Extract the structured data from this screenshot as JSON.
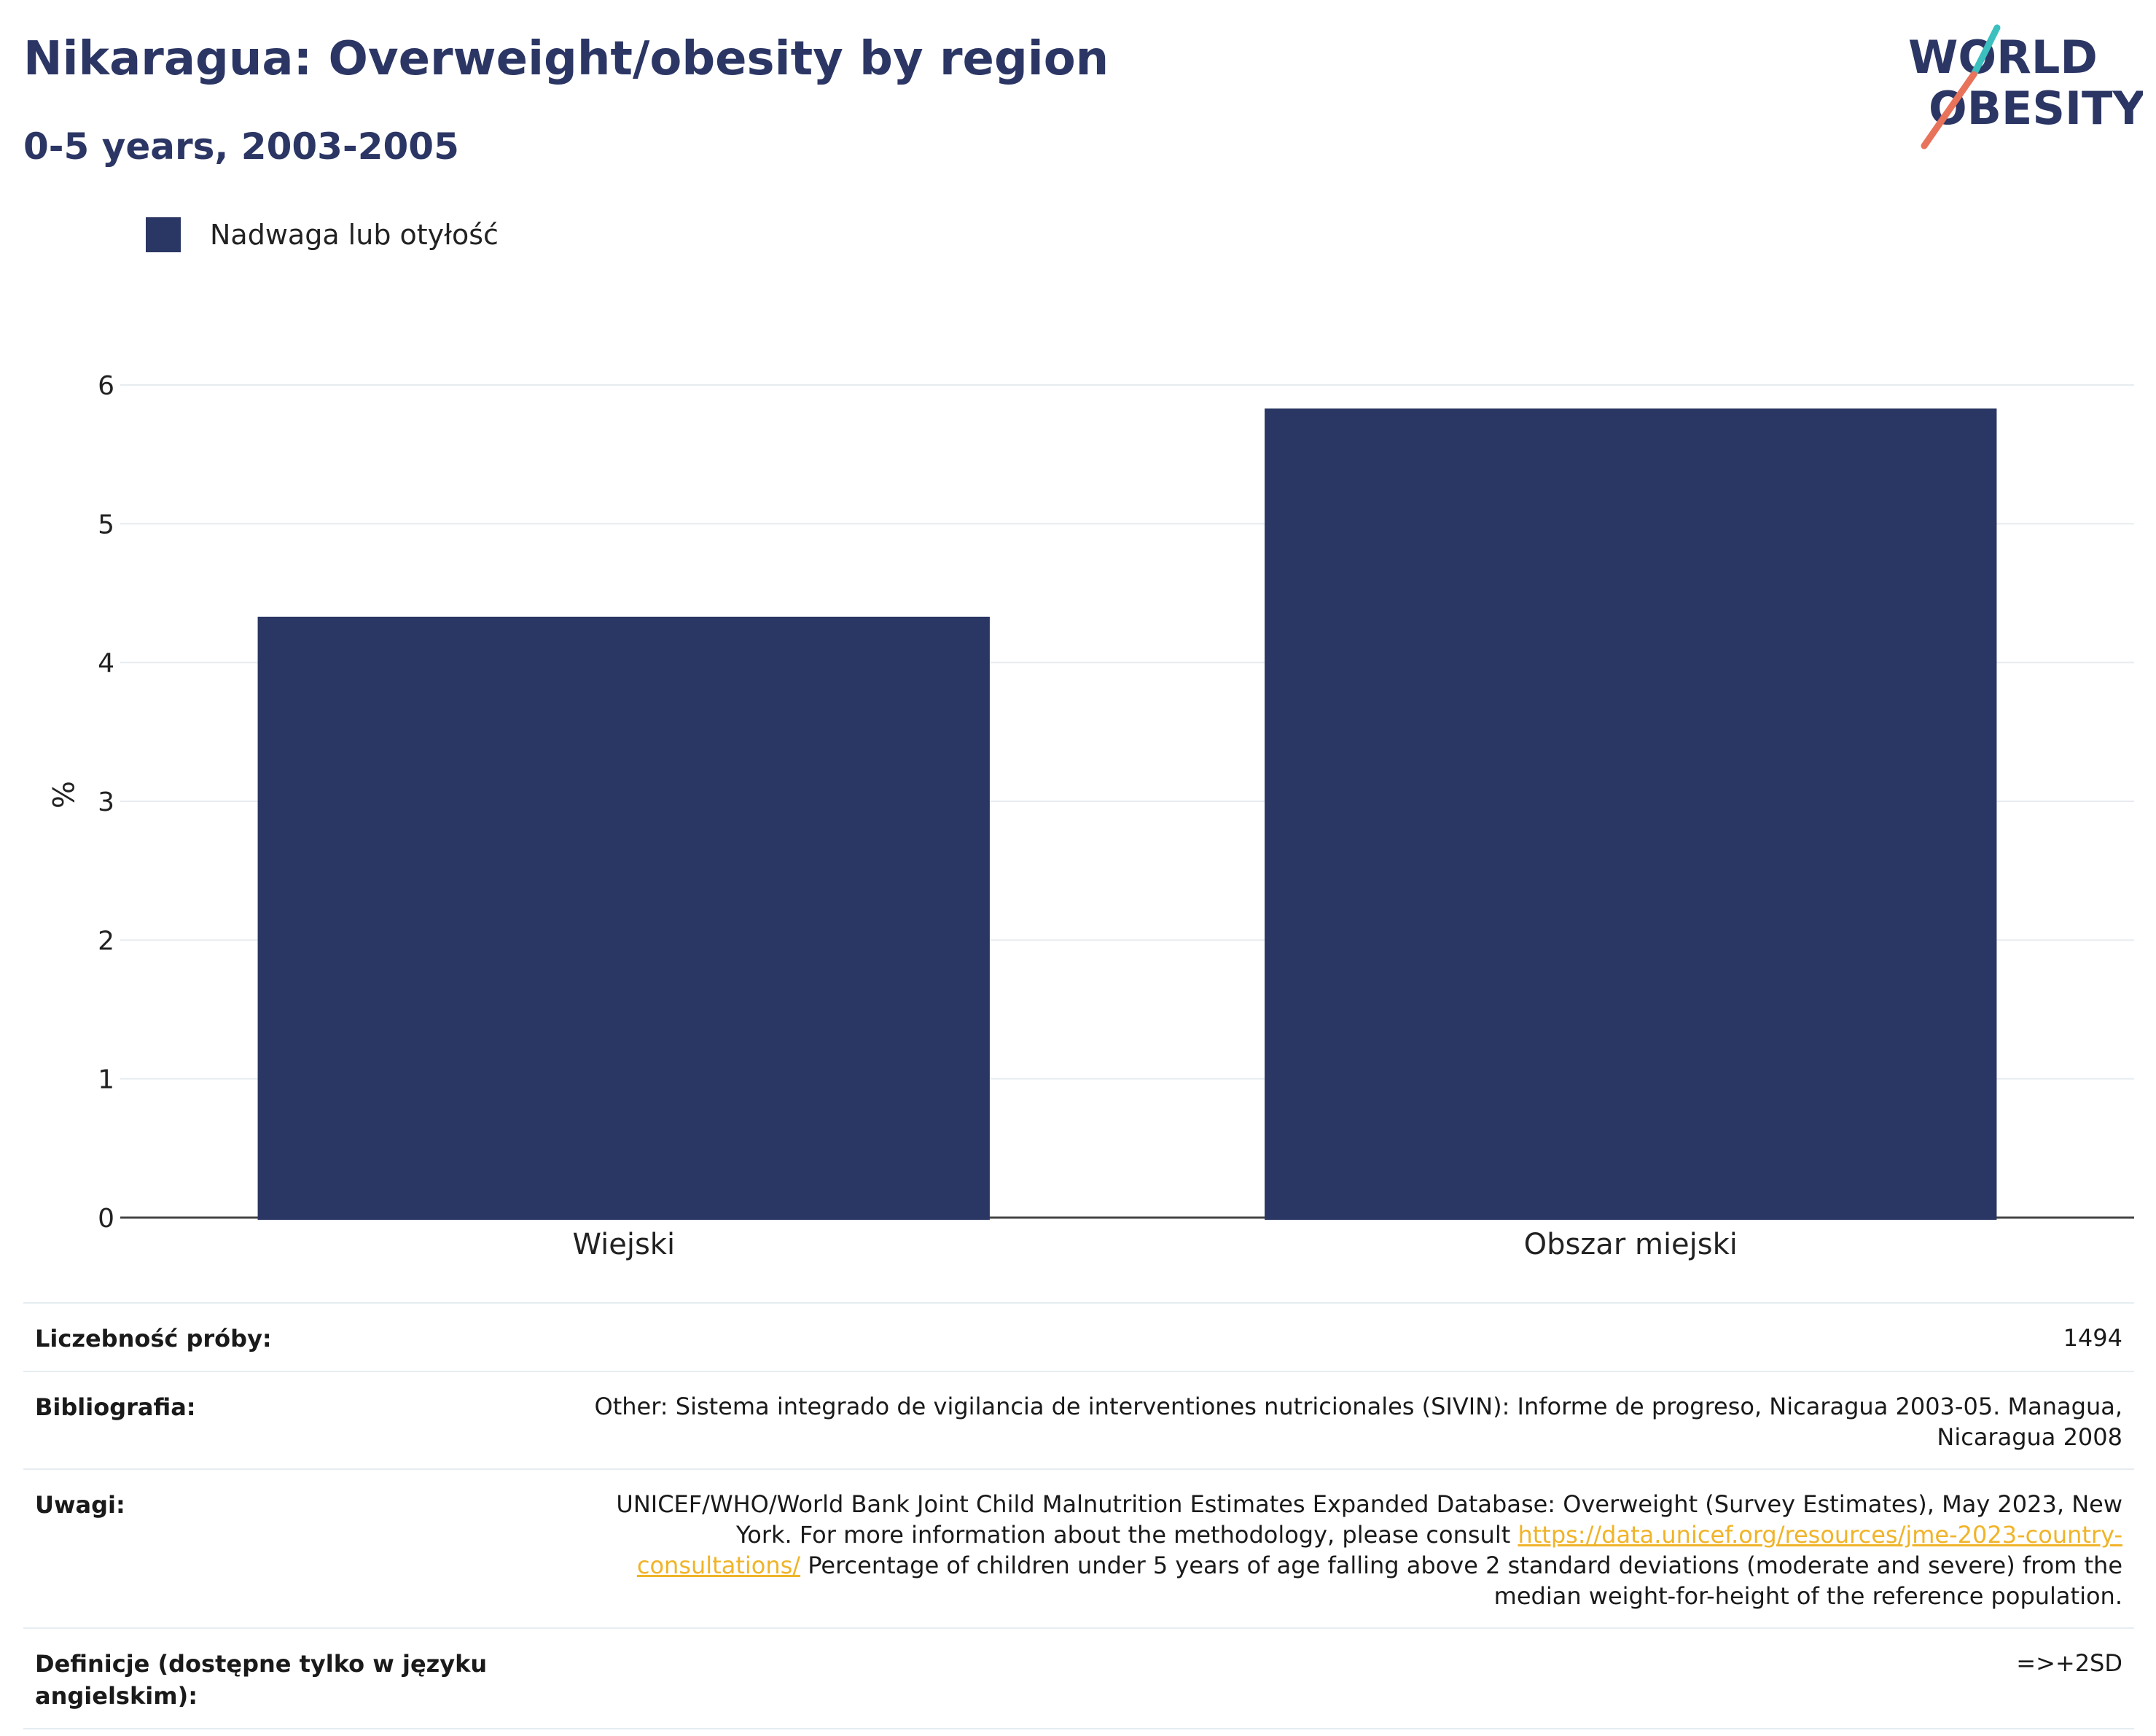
{
  "header": {
    "title": "Nikaragua: Overweight/obesity by region",
    "subtitle": "0-5 years, 2003-2005",
    "logo_line1": "WORLD",
    "logo_line2": "OBESITY"
  },
  "colors": {
    "bar": "#2a3663",
    "title": "#2b3664",
    "grid": "#e8ecef",
    "link": "#f0b429",
    "logo_teal": "#3bbfbf",
    "logo_coral": "#e8735a"
  },
  "chart_data": {
    "type": "bar",
    "categories": [
      "Wiejski",
      "Obszar miejski"
    ],
    "series": [
      {
        "name": "Nadwaga lub otyłość",
        "values": [
          4.33,
          5.83
        ]
      }
    ],
    "ylabel": "%",
    "xlabel": "",
    "ylim": [
      0,
      6
    ],
    "yticks": [
      0,
      1,
      2,
      3,
      4,
      5,
      6
    ],
    "grid": true,
    "legend_position": "top-left"
  },
  "info": {
    "sample_label": "Liczebność próby:",
    "sample_value": "1494",
    "biblio_label": "Bibliografia:",
    "biblio_value": "Other: Sistema integrado de vigilancia de interventiones nutricionales (SIVIN): Informe de progreso, Nicaragua 2003-05. Managua, Nicaragua 2008",
    "notes_label": "Uwagi:",
    "notes_text1": "UNICEF/WHO/World Bank Joint Child Malnutrition Estimates Expanded Database: Overweight (Survey Estimates), May 2023, New York. For more information about the methodology, please consult ",
    "notes_link": "https://data.unicef.org/resources/jme-2023-country-consultations/",
    "notes_text2": " Percentage of children under 5 years of age falling above 2 standard deviations (moderate and severe) from the median weight-for-height of the reference population.",
    "def_label": "Definicje (dostępne tylko w języku angielskim):",
    "def_value": "=>+2SD"
  }
}
